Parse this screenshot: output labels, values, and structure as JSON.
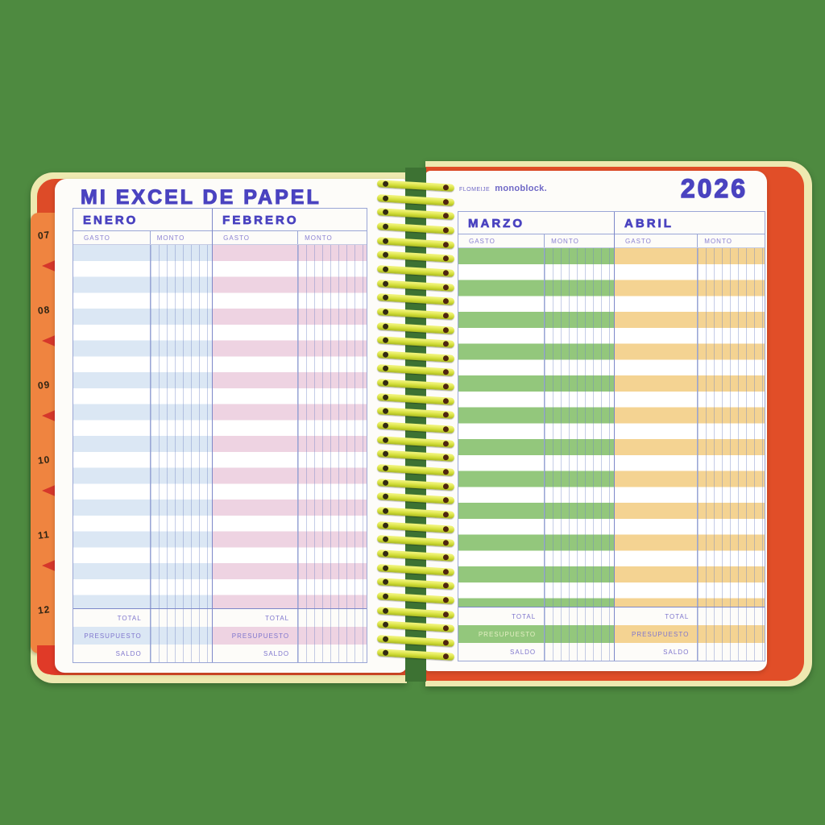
{
  "page_title": "MI EXCEL DE PAPEL",
  "year": "2026",
  "brand": {
    "collab": "FLOMEIJE",
    "name": "monoblock."
  },
  "tabs": [
    "07",
    "08",
    "09",
    "10",
    "11",
    "12"
  ],
  "months": [
    {
      "name": "ENERO",
      "color": "#dbe7f4"
    },
    {
      "name": "FEBRERO",
      "color": "#eed3e2"
    },
    {
      "name": "MARZO",
      "color": "#93c77c"
    },
    {
      "name": "ABRIL",
      "color": "#f4d392"
    }
  ],
  "table": {
    "columns": [
      "GASTO",
      "MONTO"
    ],
    "summary_rows": [
      "TOTAL",
      "PRESUPUESTO",
      "SALDO"
    ]
  },
  "colors": {
    "background_green": "#4e8a40",
    "ink_blue": "#4a43c0",
    "label_blue": "#8a80d2",
    "cover_red": "#e04b28",
    "cover_cream": "#eee9b0",
    "tab_orange": "#ef8440",
    "tab_notch_red": "#d5372b",
    "spiral_yellow_green": "#d2dd38"
  }
}
